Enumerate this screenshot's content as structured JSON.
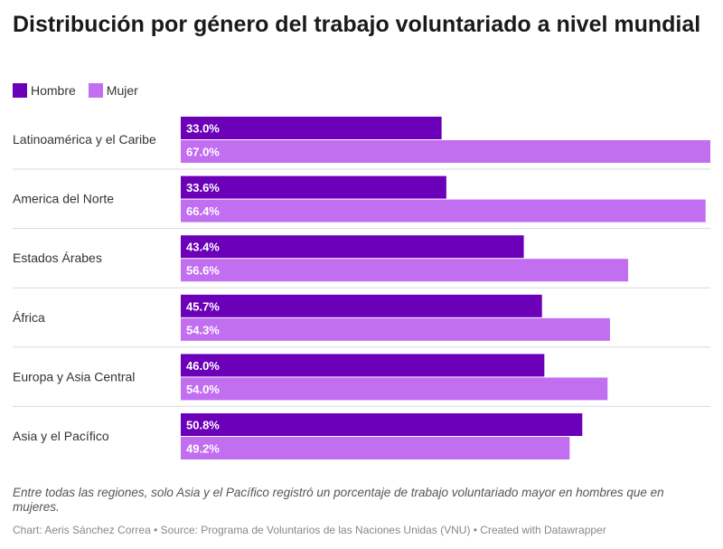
{
  "title": "Distribución por género del trabajo voluntariado a nivel mundial",
  "note": "Entre todas las regiones, solo Asia y el Pacífico registró un porcentaje de trabajo voluntariado mayor en hombres que en mujeres.",
  "footer": "Chart: Aeris Sánchez Correa • Source: Programa de Voluntarios de las Naciones Unidas (VNU) • Created with Datawrapper",
  "colors": {
    "hombre": "#6b00b8",
    "mujer": "#c26ef0",
    "divider": "#d9d9d9"
  },
  "chart_data": {
    "type": "bar",
    "orientation": "horizontal",
    "title": "Distribución por género del trabajo voluntariado a nivel mundial",
    "xlim": [
      0,
      67
    ],
    "categories": [
      "Latinoamérica y el Caribe",
      "America del Norte",
      "Estados Árabes",
      "África",
      "Europa y Asia Central",
      "Asia y el Pacífico"
    ],
    "series": [
      {
        "name": "Hombre",
        "values": [
          33.0,
          33.6,
          43.4,
          45.7,
          46.0,
          50.8
        ]
      },
      {
        "name": "Mujer",
        "values": [
          67.0,
          66.4,
          56.6,
          54.3,
          54.0,
          49.2
        ]
      }
    ],
    "legend": "top-left"
  }
}
